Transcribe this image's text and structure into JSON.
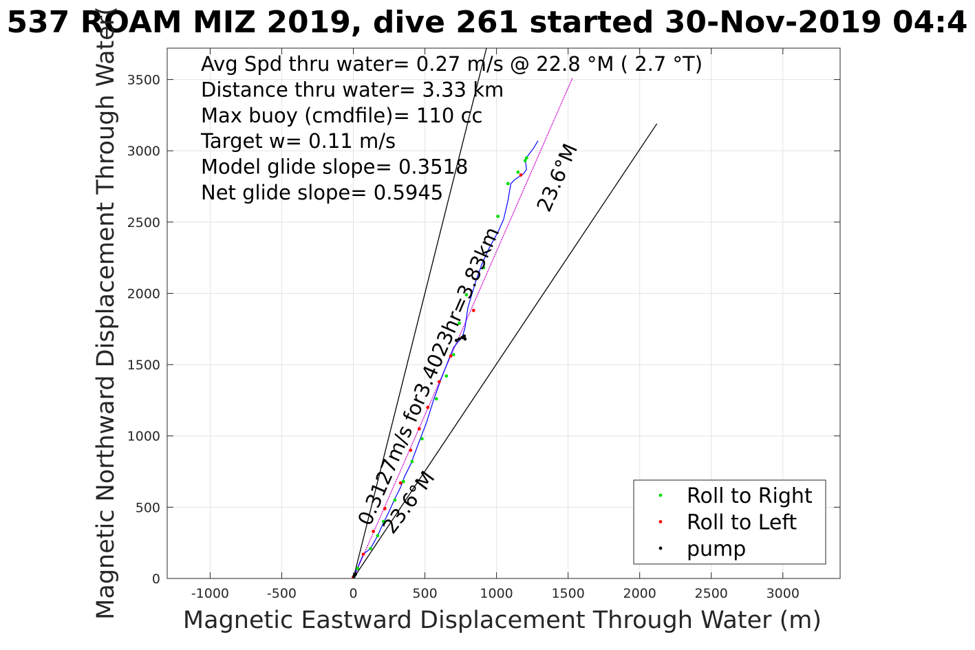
{
  "chart_data": {
    "type": "line",
    "title": "537 ROAM MIZ 2019, dive 261 started 30-Nov-2019 04:4",
    "xlabel": "Magnetic Eastward Displacement Through Water (m)",
    "ylabel": "Magnetic Northward Displacement Through Water(",
    "xlim": [
      -1300,
      3400
    ],
    "ylim": [
      0,
      3720
    ],
    "xticks": [
      -1000,
      -500,
      0,
      500,
      1000,
      1500,
      2000,
      2500,
      3000
    ],
    "xtick_labels": [
      "-1000",
      "-500",
      "0",
      "500",
      "1000",
      "1500",
      "2000",
      "2500",
      "3000"
    ],
    "yticks": [
      0,
      500,
      1000,
      1500,
      2000,
      2500,
      3000,
      3500
    ],
    "ytick_labels": [
      "0",
      "500",
      "1000",
      "1500",
      "2000",
      "2500",
      "3000",
      "3500"
    ],
    "grid": true,
    "legend_position": "bottom-right",
    "info_lines": [
      "Avg Spd thru water=  0.27 m/s @  22.8 °M (  2.7 °T)",
      "Distance thru water=  3.33 km",
      "Max buoy (cmdfile)= 110 cc",
      "Target w= 0.11 m/s",
      "Model glide slope= 0.3518",
      "Net glide slope= 0.5945"
    ],
    "annotations": [
      {
        "text": "0.3127m/s for3.4023hr=3.83km",
        "angle_deg": 66.4
      },
      {
        "text": "23.6°M",
        "angle_deg": 66.4
      },
      {
        "text": "23.6°M",
        "angle_deg": 53.5
      }
    ],
    "series": [
      {
        "name": "",
        "style": "black-line",
        "color": "#000000",
        "x": [
          0,
          930
        ],
        "y": [
          0,
          3720
        ]
      },
      {
        "name": "",
        "style": "black-line",
        "color": "#000000",
        "x": [
          0,
          2120
        ],
        "y": [
          0,
          3190
        ]
      },
      {
        "name": "",
        "style": "magenta-line",
        "color": "#cc00cc",
        "x": [
          0,
          1530
        ],
        "y": [
          0,
          3510
        ]
      },
      {
        "name": "",
        "style": "blue-line",
        "color": "#0000ff",
        "x": [
          0,
          40,
          70,
          120,
          170,
          210,
          250,
          290,
          330,
          360,
          400,
          430,
          460,
          510,
          560,
          610,
          660,
          700,
          740,
          760,
          780,
          800,
          830,
          860,
          900,
          950,
          1010,
          1050,
          1080,
          1100,
          1130,
          1160,
          1190,
          1210,
          1200,
          1230,
          1260,
          1290
        ],
        "y": [
          0,
          100,
          170,
          210,
          300,
          390,
          470,
          560,
          640,
          720,
          800,
          880,
          960,
          1090,
          1250,
          1390,
          1520,
          1620,
          1670,
          1690,
          1760,
          1900,
          2000,
          2100,
          2210,
          2320,
          2430,
          2520,
          2650,
          2770,
          2800,
          2820,
          2840,
          2870,
          2940,
          2980,
          3020,
          3070
        ]
      },
      {
        "name": "Roll to Right",
        "style": "dots",
        "color": "#00dd00",
        "x": [
          30,
          120,
          170,
          210,
          290,
          350,
          410,
          480,
          580,
          650,
          700,
          740,
          790,
          910,
          1010,
          1080,
          1150,
          1200,
          1210
        ],
        "y": [
          70,
          210,
          300,
          400,
          550,
          680,
          820,
          980,
          1260,
          1420,
          1570,
          1790,
          1990,
          2180,
          2540,
          2770,
          2850,
          2930,
          2950
        ]
      },
      {
        "name": "Roll to Left",
        "style": "dots",
        "color": "#ff0000",
        "x": [
          0,
          70,
          140,
          220,
          330,
          400,
          460,
          520,
          600,
          680,
          760,
          840,
          1170
        ],
        "y": [
          10,
          170,
          330,
          490,
          670,
          900,
          1050,
          1200,
          1380,
          1560,
          1690,
          1880,
          2830
        ]
      },
      {
        "name": "pump",
        "style": "dots",
        "color": "#000000",
        "x": [
          5,
          10,
          15,
          720,
          740,
          760,
          775,
          780
        ],
        "y": [
          15,
          25,
          30,
          1670,
          1680,
          1690,
          1700,
          1680
        ]
      }
    ]
  }
}
